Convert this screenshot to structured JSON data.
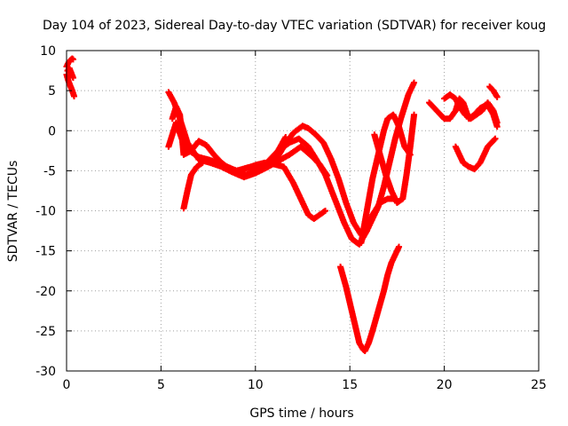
{
  "chart_data": {
    "type": "scatter",
    "title": "Day 104 of 2023, Sidereal Day-to-day VTEC variation (SDTVAR) for receiver koug",
    "xlabel": "GPS time / hours",
    "ylabel": "SDTVAR / TECUs",
    "xlim": [
      0,
      25
    ],
    "ylim": [
      -30,
      10
    ],
    "x_ticks": [
      "0",
      "5",
      "10",
      "15",
      "20",
      "25"
    ],
    "y_ticks": [
      "-30",
      "-25",
      "-20",
      "-15",
      "-10",
      "-5",
      "0",
      "5",
      "10"
    ],
    "grid": true,
    "marker": "plus",
    "color": "#ff0000",
    "series": [
      {
        "x": [
          0.0,
          0.1,
          0.2,
          0.3,
          0.35
        ],
        "y": [
          8.0,
          8.5,
          8.8,
          9.0,
          8.9
        ]
      },
      {
        "x": [
          0.0,
          0.1,
          0.2,
          0.3,
          0.4
        ],
        "y": [
          7.0,
          6.2,
          5.6,
          5.0,
          4.3
        ]
      },
      {
        "x": [
          0.05,
          0.15,
          0.25,
          0.35
        ],
        "y": [
          7.5,
          7.8,
          7.2,
          6.6
        ]
      },
      {
        "x": [
          5.4,
          5.7,
          6.0,
          6.4,
          7.0,
          7.6,
          8.2,
          8.8,
          9.4,
          10.0,
          10.6,
          11.2,
          11.8,
          12.4,
          12.9,
          13.4,
          13.8
        ],
        "y": [
          4.8,
          3.5,
          1.5,
          -1.5,
          -3.6,
          -4.0,
          -4.5,
          -5.2,
          -5.8,
          -5.3,
          -4.6,
          -3.8,
          -3.0,
          -2.0,
          -3.0,
          -4.2,
          -5.6
        ]
      },
      {
        "x": [
          5.4,
          5.6,
          5.8,
          6.1,
          6.5,
          7.0,
          7.5,
          8.0,
          8.5,
          9.0,
          9.5,
          10.0,
          10.6,
          11.2,
          11.8,
          12.3,
          12.8,
          13.2,
          13.7,
          14.2,
          14.7,
          15.1,
          15.5,
          15.9,
          16.2,
          16.6,
          17.0,
          17.4
        ],
        "y": [
          -2.0,
          -0.5,
          1.0,
          -1.0,
          -2.5,
          -3.3,
          -3.6,
          -4.0,
          -4.5,
          -5.0,
          -5.5,
          -5.0,
          -4.0,
          -2.5,
          -1.5,
          -1.0,
          -2.0,
          -3.5,
          -5.5,
          -8.5,
          -11.5,
          -13.5,
          -14.2,
          -12.5,
          -10.5,
          -9.0,
          -8.5,
          -8.5
        ]
      },
      {
        "x": [
          5.6,
          5.8,
          6.0,
          6.2,
          6.6,
          7.0,
          7.4,
          7.8,
          8.2,
          8.6,
          9.0,
          9.6,
          10.2,
          10.8,
          11.2,
          11.6
        ],
        "y": [
          1.5,
          3.0,
          2.0,
          -3.0,
          -2.5,
          -1.3,
          -1.8,
          -3.0,
          -4.0,
          -4.7,
          -5.0,
          -4.6,
          -4.4,
          -4.0,
          -2.5,
          -0.8
        ]
      },
      {
        "x": [
          6.2,
          6.4,
          6.6,
          6.9,
          7.2
        ],
        "y": [
          -9.7,
          -7.5,
          -5.5,
          -4.5,
          -4.0
        ]
      },
      {
        "x": [
          9.5,
          10.0,
          10.5,
          11.0,
          11.5,
          12.0,
          12.5,
          12.8,
          13.1,
          13.4,
          13.7
        ],
        "y": [
          -4.7,
          -4.3,
          -4.0,
          -4.2,
          -4.5,
          -6.5,
          -9.0,
          -10.5,
          -11.0,
          -10.5,
          -10.0
        ]
      },
      {
        "x": [
          11.0,
          11.5,
          12.0,
          12.5,
          12.8,
          13.2,
          13.6,
          14.0,
          14.4,
          14.8,
          15.2,
          15.6,
          15.9,
          16.2,
          16.5,
          16.8,
          17.1,
          17.4,
          17.7,
          17.9,
          18.1,
          18.3,
          18.4
        ],
        "y": [
          -4.0,
          -2.0,
          -0.3,
          0.6,
          0.3,
          -0.5,
          -1.5,
          -3.5,
          -6.0,
          -9.0,
          -11.5,
          -13.0,
          -12.5,
          -11.0,
          -9.5,
          -7.0,
          -4.0,
          -1.0,
          1.5,
          3.0,
          4.5,
          5.5,
          6.0
        ]
      },
      {
        "x": [
          16.3,
          16.6,
          16.9,
          17.2,
          17.5,
          17.8,
          18.0,
          18.2,
          18.4
        ],
        "y": [
          -0.5,
          -3.0,
          -5.5,
          -7.5,
          -9.0,
          -8.5,
          -5.5,
          -2.0,
          2.0
        ]
      },
      {
        "x": [
          15.6,
          15.9,
          16.2,
          16.5,
          16.8,
          17.0,
          17.3,
          17.6,
          17.9,
          18.2
        ],
        "y": [
          -14.0,
          -10.0,
          -6.0,
          -3.0,
          0.0,
          1.5,
          2.0,
          0.5,
          -2.0,
          -3.0
        ]
      },
      {
        "x": [
          14.5,
          14.8,
          15.0,
          15.3,
          15.5,
          15.7,
          15.8,
          16.0,
          16.2,
          16.5,
          16.8,
          17.0,
          17.2,
          17.4,
          17.6
        ],
        "y": [
          -17.0,
          -19.5,
          -21.5,
          -24.5,
          -26.5,
          -27.3,
          -27.5,
          -26.5,
          -25.0,
          -22.5,
          -20.0,
          -18.0,
          -16.5,
          -15.5,
          -14.5
        ]
      },
      {
        "x": [
          19.2,
          19.6,
          20.0,
          20.3,
          20.6,
          20.8,
          21.0,
          21.3,
          21.6,
          21.9,
          22.2,
          22.4,
          22.6,
          22.8
        ],
        "y": [
          3.5,
          2.5,
          1.5,
          1.5,
          2.5,
          4.0,
          3.5,
          1.5,
          2.0,
          2.8,
          3.2,
          2.8,
          2.0,
          0.5
        ]
      },
      {
        "x": [
          20.0,
          20.3,
          20.6,
          20.8,
          21.1,
          21.4,
          21.7,
          22.0,
          22.3,
          22.6,
          22.8
        ],
        "y": [
          4.0,
          4.5,
          4.0,
          3.0,
          2.0,
          1.5,
          2.0,
          2.5,
          3.5,
          2.5,
          1.0
        ]
      },
      {
        "x": [
          20.6,
          20.8,
          21.0,
          21.3,
          21.6,
          21.9,
          22.1,
          22.3,
          22.5,
          22.7
        ],
        "y": [
          -2.0,
          -3.0,
          -4.0,
          -4.5,
          -4.8,
          -4.0,
          -3.0,
          -2.0,
          -1.5,
          -1.0
        ]
      },
      {
        "x": [
          22.4,
          22.6,
          22.8
        ],
        "y": [
          5.5,
          5.0,
          4.2
        ]
      }
    ]
  }
}
